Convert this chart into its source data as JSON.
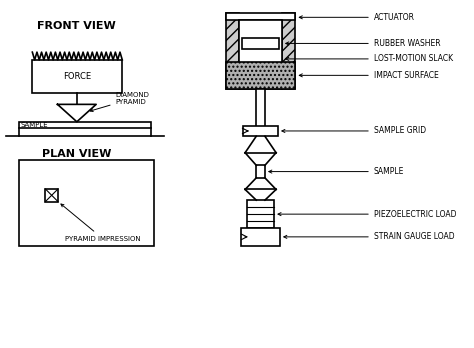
{
  "bg_color": "#ffffff",
  "line_color": "#000000",
  "labels": {
    "front_view": "FRONT VIEW",
    "plan_view": "PLAN VIEW",
    "force": "FORCE",
    "diamond_pyramid": "DIAMOND\nPYRAMID",
    "sample_fv": "SAMPLE",
    "pyramid_impression": "PYRAMID IMPRESSION",
    "actuator": "ACTUATOR",
    "rubber_washer": "RUBBER WASHER",
    "lost_motion": "LOST-MOTION SLACK",
    "impact_surface": "IMPACT SURFACE",
    "sample_grid": "SAMPLE GRID",
    "sample": "SAMPLE",
    "piezoelectric": "PIEZOELECTRIC LOAD",
    "strain_gauge": "STRAIN GAUGE LOAD"
  }
}
